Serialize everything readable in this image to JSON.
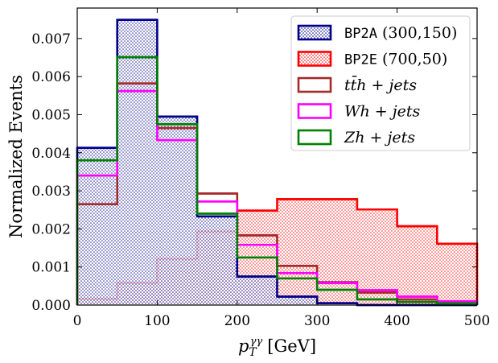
{
  "chart_data": {
    "type": "histogram",
    "xlabel": "p_T^{γγ} [GeV]",
    "xlabel_main": "p",
    "xlabel_sub": "T",
    "xlabel_sup": "γγ",
    "xlabel_unit": "[GeV]",
    "ylabel": "Normalized Events",
    "xlim": [
      0,
      500
    ],
    "ylim": [
      0,
      0.0078
    ],
    "xticks": [
      0,
      100,
      200,
      300,
      400,
      500
    ],
    "xtick_labels": [
      "0",
      "100",
      "200",
      "300",
      "400",
      "500"
    ],
    "yticks": [
      0.0,
      0.001,
      0.002,
      0.003,
      0.004,
      0.005,
      0.006,
      0.007
    ],
    "ytick_labels": [
      "0.000",
      "0.001",
      "0.002",
      "0.003",
      "0.004",
      "0.005",
      "0.006",
      "0.007"
    ],
    "bin_edges": [
      0,
      50,
      100,
      150,
      200,
      250,
      300,
      350,
      400,
      450,
      500
    ],
    "legend_position": "top-right",
    "series": [
      {
        "name": "BP2A (300,150)",
        "label_mono": "BP2A",
        "label_rest": " (300,150)",
        "color": "#00008B",
        "filled": true,
        "values": [
          0.00413,
          0.00749,
          0.00495,
          0.00233,
          0.00075,
          0.00022,
          5e-05,
          0.0,
          0.0,
          0.0
        ]
      },
      {
        "name": "BP2E (700,50)",
        "label_mono": "BP2E",
        "label_rest": " (700,50)",
        "color": "#FF0000",
        "filled": true,
        "values": [
          0.00016,
          0.00058,
          0.00121,
          0.00193,
          0.00248,
          0.00278,
          0.00278,
          0.00251,
          0.00207,
          0.00161
        ]
      },
      {
        "name": "tt̄h + jets",
        "label_plain": "tt̄h + jets",
        "color": "#A52A2A",
        "filled": false,
        "values": [
          0.00265,
          0.00582,
          0.00465,
          0.00293,
          0.00183,
          0.00103,
          0.0006,
          0.00033,
          0.00015,
          8e-05
        ]
      },
      {
        "name": "Wh + jets",
        "label_plain": "Wh + jets",
        "color": "#FF00FF",
        "filled": false,
        "values": [
          0.0034,
          0.00562,
          0.00433,
          0.00272,
          0.00158,
          0.00084,
          0.00058,
          0.00039,
          0.00022,
          0.0001
        ]
      },
      {
        "name": "Zh + jets",
        "label_plain": "Zh + jets",
        "color": "#008000",
        "filled": false,
        "values": [
          0.0038,
          0.00651,
          0.00475,
          0.0024,
          0.00125,
          0.0007,
          0.0004,
          0.00015,
          8e-05,
          4e-05
        ]
      }
    ]
  }
}
